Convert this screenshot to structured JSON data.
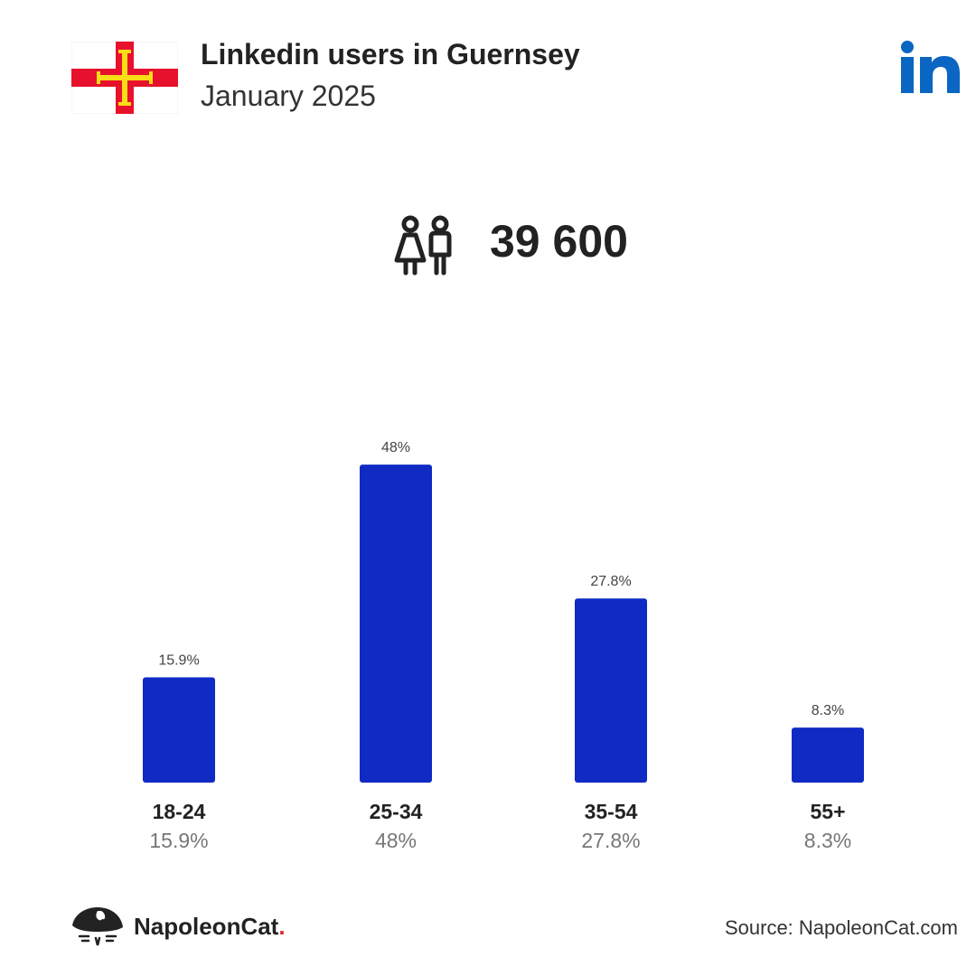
{
  "header": {
    "title": "Linkedin users in Guernsey",
    "subtitle": "January 2025"
  },
  "summary": {
    "total_users": "39 600"
  },
  "colors": {
    "bar": "#0f2bc4",
    "flag_red": "#e8112d",
    "flag_gold": "#f9dd16",
    "linkedin_blue": "#0a66c2"
  },
  "icons": {
    "flag": "guernsey-flag-icon",
    "brand": "linkedin-logo-icon",
    "users": "users-icon",
    "footer_logo": "napoleoncat-logo-icon"
  },
  "chart_data": {
    "type": "bar",
    "title": "",
    "xlabel": "",
    "ylabel": "",
    "categories": [
      "18-24",
      "25-34",
      "35-54",
      "55+"
    ],
    "values": [
      15.9,
      48,
      27.8,
      8.3
    ],
    "value_labels": [
      "15.9%",
      "48%",
      "27.8%",
      "8.3%"
    ],
    "grid": false,
    "legend": "none"
  },
  "footer": {
    "brand_name": "NapoleonCat",
    "brand_dot": ".",
    "source": "Source: NapoleonCat.com"
  }
}
